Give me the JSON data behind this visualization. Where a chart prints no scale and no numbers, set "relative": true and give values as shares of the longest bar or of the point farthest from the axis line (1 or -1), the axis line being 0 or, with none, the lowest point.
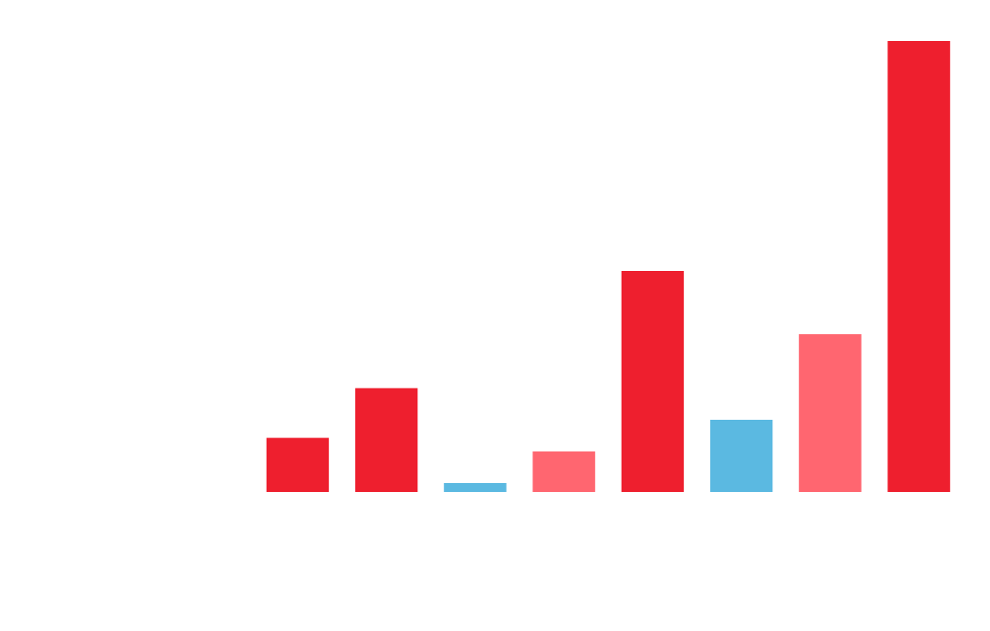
{
  "chart_data": {
    "type": "bar",
    "relative": true,
    "categories": [
      null,
      null,
      null,
      null,
      null,
      null,
      null,
      null
    ],
    "values": [
      0.12,
      0.23,
      0.02,
      0.09,
      0.49,
      0.16,
      0.35,
      1
    ],
    "colors": [
      "#ee1f2e",
      "#ee1f2e",
      "#5bb9e1",
      "#ff6670",
      "#ee1f2e",
      "#5bb9e1",
      "#ff6670",
      "#ee1f2e"
    ]
  }
}
